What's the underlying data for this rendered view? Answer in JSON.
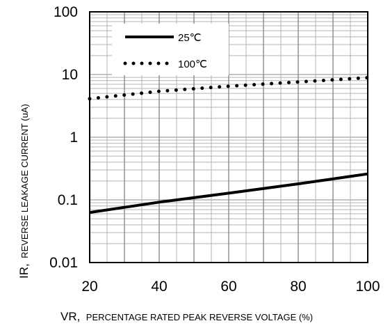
{
  "chart_data": {
    "type": "line",
    "xscale": "linear",
    "yscale": "log",
    "xlim": [
      20,
      100
    ],
    "ylim": [
      0.01,
      100
    ],
    "x_ticks": [
      "20",
      "40",
      "60",
      "80",
      "100"
    ],
    "y_ticks": [
      "0.01",
      "0.1",
      "1",
      "10",
      "100"
    ],
    "x_ticks_values": [
      20,
      40,
      60,
      80,
      100
    ],
    "y_ticks_values": [
      0.01,
      0.1,
      1,
      10,
      100
    ],
    "xlabel_prefix": "VR,",
    "xlabel_rest": "PERCENTAGE RATED PEAK REVERSE VOLTAGE (%)",
    "ylabel_prefix": "IR,",
    "ylabel_rest": "REVERSE LEAKAGE CURRENT (uA)",
    "grid": true,
    "legend_position": "top-left",
    "series": [
      {
        "name": "25℃",
        "style": "solid",
        "x": [
          20,
          40,
          60,
          80,
          100
        ],
        "y": [
          0.063,
          0.092,
          0.128,
          0.18,
          0.26
        ]
      },
      {
        "name": "100℃",
        "style": "dotted",
        "x": [
          20,
          40,
          60,
          80,
          100
        ],
        "y": [
          4.1,
          5.4,
          6.5,
          7.6,
          8.9
        ]
      }
    ]
  }
}
